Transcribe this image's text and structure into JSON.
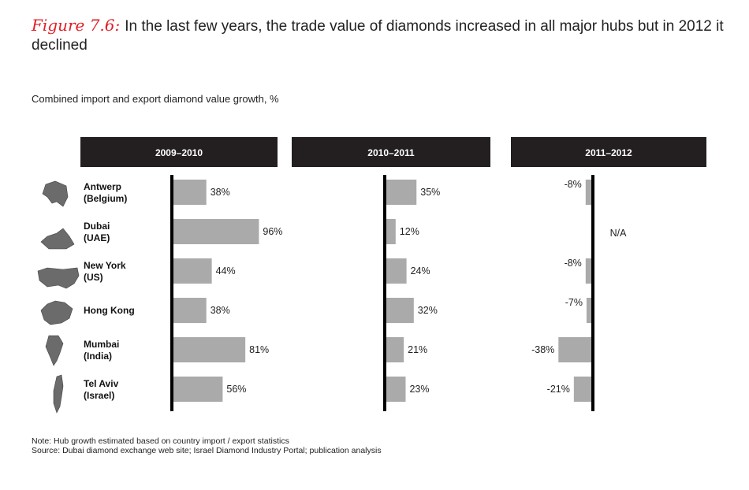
{
  "figure_label": "Figure 7.6:",
  "title": "In the last few years, the trade value of diamonds increased in all major hubs but in 2012 it declined",
  "subtitle": "Combined import and export diamond value growth, %",
  "notes": {
    "note": "Note:  Hub growth estimated based on country import / export statistics",
    "source": "Source:  Dubai diamond exchange web site; Israel Diamond Industry Portal; publication analysis"
  },
  "colors": {
    "bar": "#aaaaaa",
    "header_bg": "#231f20",
    "axis": "#000000",
    "accent": "#e11f26"
  },
  "chart_data": {
    "type": "bar",
    "orientation": "horizontal",
    "categories": [
      [
        "Antwerp",
        "(Belgium)"
      ],
      [
        "Dubai",
        "(UAE)"
      ],
      [
        "New York",
        "(US)"
      ],
      [
        "Hong Kong"
      ],
      [
        "Mumbai",
        "(India)"
      ],
      [
        "Tel Aviv",
        "(Israel)"
      ]
    ],
    "icons": [
      "belgium-map-icon",
      "uae-map-icon",
      "us-flag-map-icon",
      "hong-kong-map-icon",
      "india-map-icon",
      "israel-map-icon"
    ],
    "panels": [
      {
        "name": "2009–2010",
        "values": [
          38,
          96,
          44,
          38,
          81,
          56
        ],
        "labels": [
          "38%",
          "96%",
          "44%",
          "38%",
          "81%",
          "56%"
        ]
      },
      {
        "name": "2010–2011",
        "values": [
          35,
          12,
          24,
          32,
          21,
          23
        ],
        "labels": [
          "35%",
          "12%",
          "24%",
          "32%",
          "21%",
          "23%"
        ]
      },
      {
        "name": "2011–2012",
        "values": [
          -8,
          null,
          -8,
          -7,
          -38,
          -21
        ],
        "labels": [
          "-8%",
          "N/A",
          "-8%",
          "-7%",
          "-38%",
          "-21%"
        ]
      }
    ],
    "unit": "%"
  }
}
